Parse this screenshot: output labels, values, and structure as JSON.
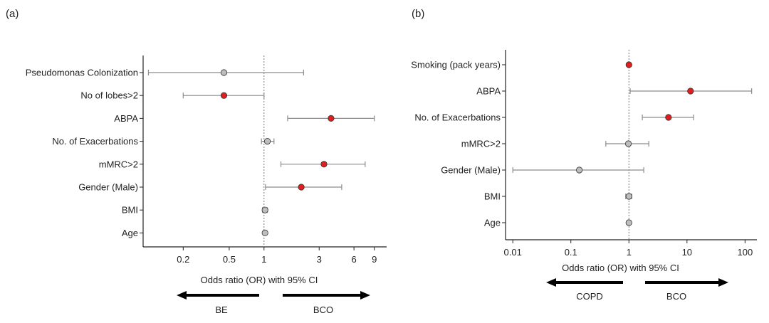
{
  "chart_data": [
    {
      "panel": "(a)",
      "type": "forest",
      "xscale": "log",
      "xlim": [
        0.09,
        11.5
      ],
      "xticks": [
        0.2,
        0.5,
        1,
        3,
        6,
        9
      ],
      "xtick_labels": [
        "0.2",
        "0.5",
        "1",
        "3",
        "6",
        "9"
      ],
      "reference_line": 1,
      "xlabel": "Odds ratio (OR) with 95% CI",
      "arrow_left": "BE",
      "arrow_right": "BCO",
      "rows": [
        {
          "label": "Pseudomonas Colonization",
          "or": 0.45,
          "low": 0.1,
          "high": 2.2,
          "significant": false
        },
        {
          "label": "No of lobes>2",
          "or": 0.45,
          "low": 0.2,
          "high": 1.0,
          "significant": true
        },
        {
          "label": "ABPA",
          "or": 3.8,
          "low": 1.6,
          "high": 9.0,
          "significant": true
        },
        {
          "label": "No. of Exacerbations",
          "or": 1.07,
          "low": 0.95,
          "high": 1.22,
          "significant": false
        },
        {
          "label": "mMRC>2",
          "or": 3.3,
          "low": 1.4,
          "high": 7.5,
          "significant": true
        },
        {
          "label": "Gender (Male)",
          "or": 2.1,
          "low": 1.03,
          "high": 4.7,
          "significant": true
        },
        {
          "label": "BMI",
          "or": 1.02,
          "low": 0.97,
          "high": 1.07,
          "significant": false
        },
        {
          "label": "Age",
          "or": 1.02,
          "low": 1.0,
          "high": 1.04,
          "significant": false
        }
      ]
    },
    {
      "panel": "(b)",
      "type": "forest",
      "xscale": "log",
      "xlim": [
        0.0075,
        160
      ],
      "xticks": [
        0.01,
        0.1,
        1,
        10,
        100
      ],
      "xtick_labels": [
        "0.01",
        "0.1",
        "1",
        "10",
        "100"
      ],
      "reference_line": 1,
      "xlabel": "Odds ratio (OR) with 95% CI",
      "arrow_left": "COPD",
      "arrow_right": "BCO",
      "rows": [
        {
          "label": "Smoking (pack years)",
          "or": 1.0,
          "low": 0.98,
          "high": 1.02,
          "significant": true
        },
        {
          "label": "ABPA",
          "or": 11.5,
          "low": 1.05,
          "high": 130,
          "significant": true
        },
        {
          "label": "No. of Exacerbations",
          "or": 4.8,
          "low": 1.7,
          "high": 13,
          "significant": true
        },
        {
          "label": "mMRC>2",
          "or": 0.98,
          "low": 0.4,
          "high": 2.2,
          "significant": false
        },
        {
          "label": "Gender (Male)",
          "or": 0.14,
          "low": 0.01,
          "high": 1.8,
          "significant": false
        },
        {
          "label": "BMI",
          "or": 1.0,
          "low": 0.88,
          "high": 1.12,
          "significant": false
        },
        {
          "label": "Age",
          "or": 1.0,
          "low": 0.98,
          "high": 1.02,
          "significant": false
        }
      ]
    }
  ],
  "colors": {
    "significant": "#e01e1e",
    "nonsignificant": "#bdbdbd",
    "marker_stroke": "#333333",
    "ci_line": "#8c8c8c",
    "axis": "#222222",
    "reference": "#777777"
  }
}
